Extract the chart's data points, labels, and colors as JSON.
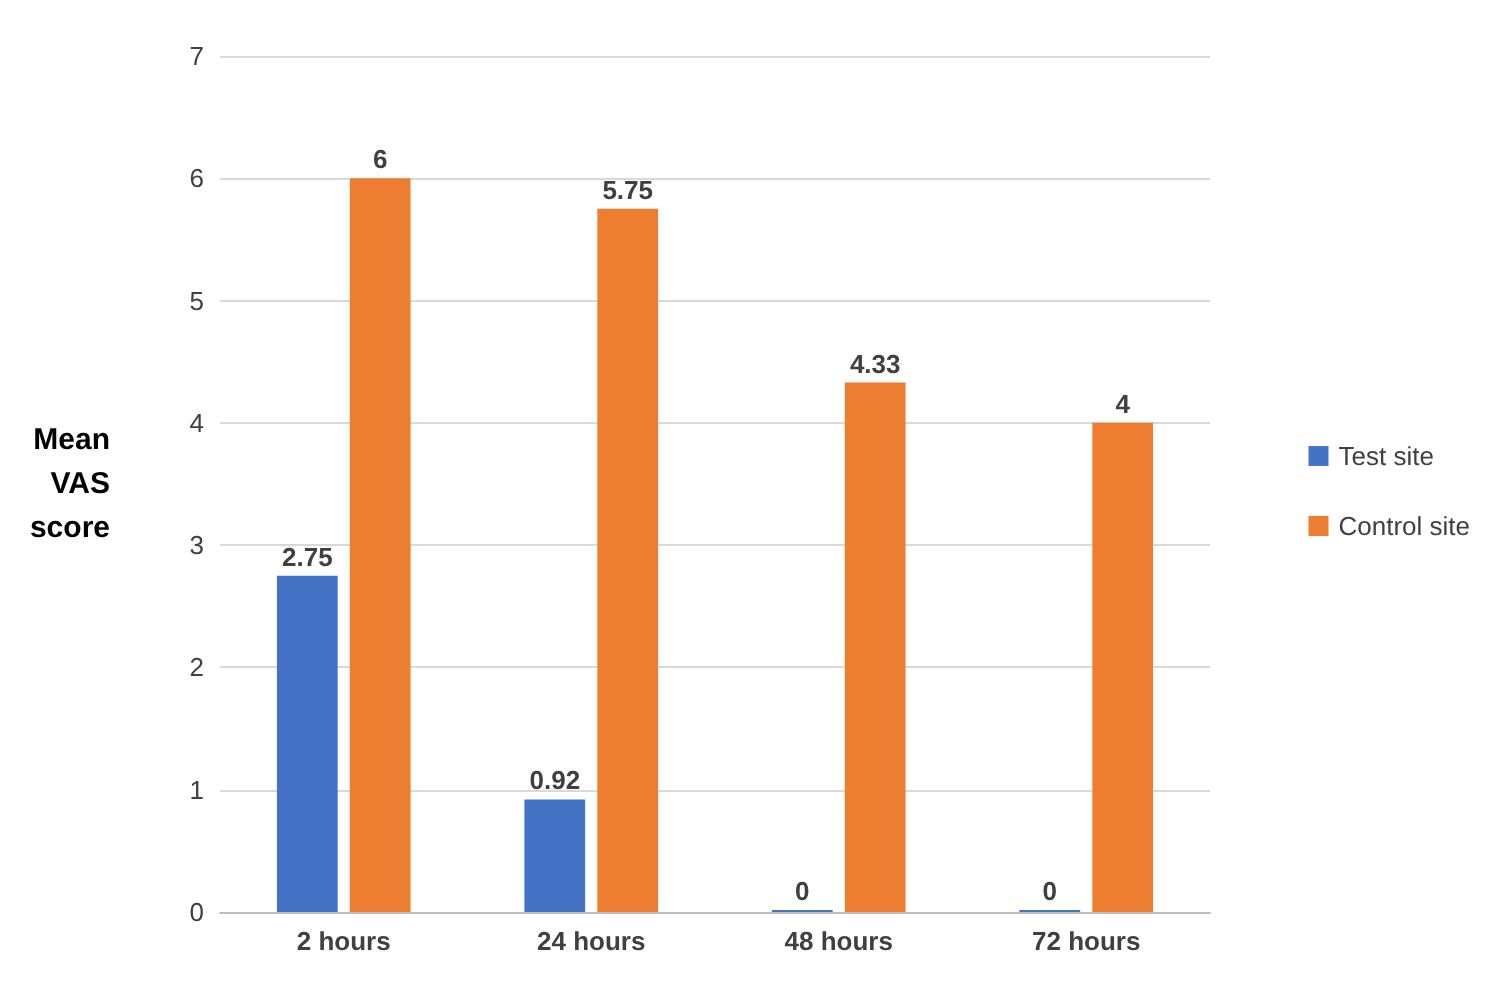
{
  "chart_data": {
    "type": "bar",
    "ylabel": "Mean VAS score",
    "categories": [
      "2 hours",
      "24 hours",
      "48 hours",
      "72 hours"
    ],
    "series": [
      {
        "name": "Test site",
        "color": "#4472c4",
        "values": [
          2.75,
          0.92,
          0,
          0
        ]
      },
      {
        "name": "Control site",
        "color": "#ed7d31",
        "values": [
          6,
          5.75,
          4.33,
          4
        ]
      }
    ],
    "ylim": [
      0,
      7
    ],
    "yticks": [
      0,
      1,
      2,
      3,
      4,
      5,
      6,
      7
    ],
    "grid": "y",
    "legend": "right",
    "data_labels": true
  }
}
